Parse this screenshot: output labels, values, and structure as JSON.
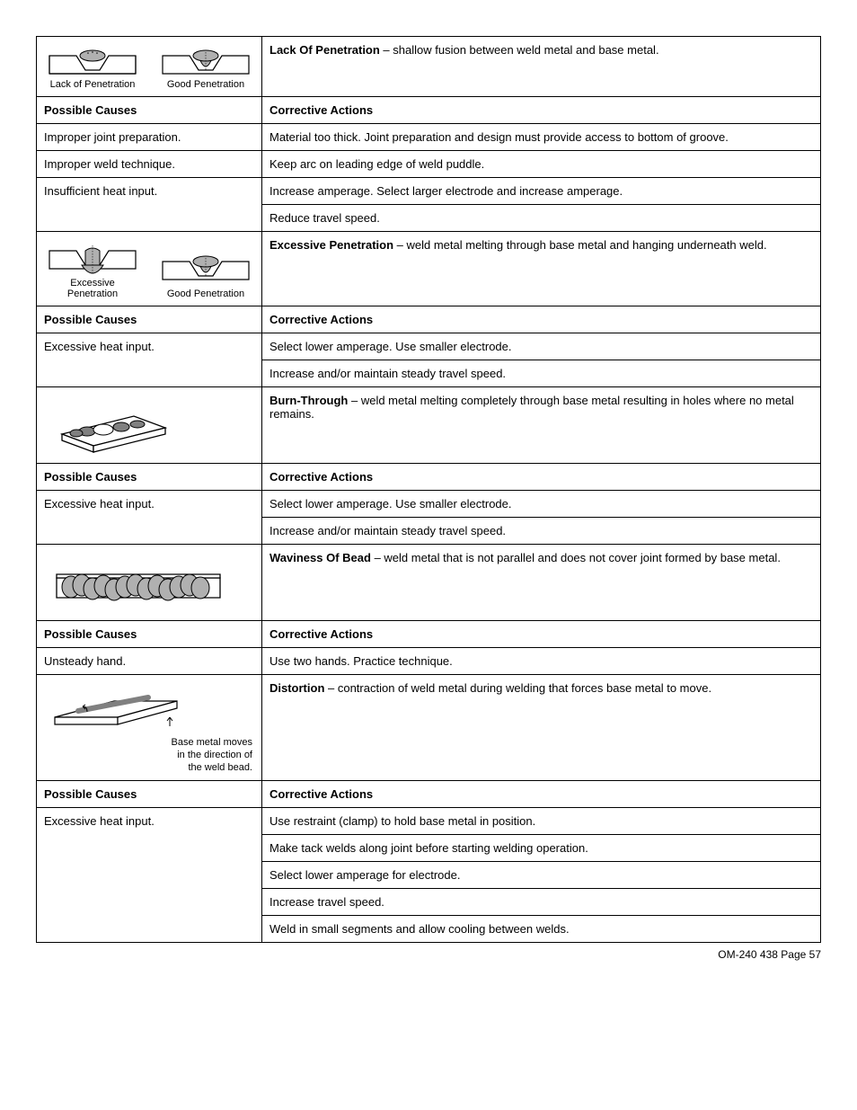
{
  "colors": {
    "border": "#000000",
    "fill_gray": "#b0b0b0",
    "fill_dark": "#808080",
    "text": "#000000",
    "bg": "#ffffff"
  },
  "sections": [
    {
      "defect_title": "Lack Of Penetration",
      "defect_desc": " – shallow fusion between weld metal and base metal.",
      "diagram_labels": {
        "a": "Lack of Penetration",
        "b": "Good Penetration"
      },
      "causes_header": "Possible Causes",
      "actions_header": "Corrective Actions",
      "rows": [
        {
          "cause": "Improper joint preparation.",
          "actions": [
            "Material too thick. Joint preparation and design must provide access to bottom of groove."
          ]
        },
        {
          "cause": "Improper weld technique.",
          "actions": [
            "Keep arc on leading edge of weld puddle."
          ]
        },
        {
          "cause": "Insufficient heat input.",
          "actions": [
            "Increase amperage. Select larger electrode and increase amperage.",
            "Reduce travel speed."
          ]
        }
      ]
    },
    {
      "defect_title": "Excessive Penetration",
      "defect_desc": " – weld metal melting through base metal and hanging underneath weld.",
      "diagram_labels": {
        "a": "Excessive Penetration",
        "b": "Good Penetration"
      },
      "causes_header": "Possible Causes",
      "actions_header": "Corrective Actions",
      "rows": [
        {
          "cause": "Excessive heat input.",
          "actions": [
            "Select lower amperage. Use smaller electrode.",
            "Increase and/or maintain steady travel speed."
          ]
        }
      ]
    },
    {
      "defect_title": "Burn-Through",
      "defect_desc": " – weld metal melting completely through base metal resulting in holes where no metal remains.",
      "causes_header": "Possible Causes",
      "actions_header": "Corrective Actions",
      "rows": [
        {
          "cause": "Excessive heat input.",
          "actions": [
            "Select lower amperage. Use smaller electrode.",
            "Increase and/or maintain steady travel speed."
          ]
        }
      ]
    },
    {
      "defect_title": "Waviness Of Bead",
      "defect_desc": " – weld metal that is not parallel and does not cover joint formed by base metal.",
      "causes_header": "Possible Causes",
      "actions_header": "Corrective Actions",
      "rows": [
        {
          "cause": "Unsteady hand.",
          "actions": [
            "Use two hands. Practice technique."
          ]
        }
      ]
    },
    {
      "defect_title": "Distortion",
      "defect_desc": " – contraction of weld metal during welding that forces base metal to move.",
      "diagram_caption": "Base metal moves\nin the direction of\nthe weld bead.",
      "causes_header": "Possible Causes",
      "actions_header": "Corrective Actions",
      "rows": [
        {
          "cause": "Excessive heat input.",
          "actions": [
            "Use restraint (clamp) to hold base metal in position.",
            "Make tack welds along joint before starting welding operation.",
            "Select lower amperage for electrode.",
            "Increase travel speed.",
            "Weld in small segments and allow cooling between welds."
          ]
        }
      ]
    }
  ],
  "footer": "OM-240 438 Page 57"
}
